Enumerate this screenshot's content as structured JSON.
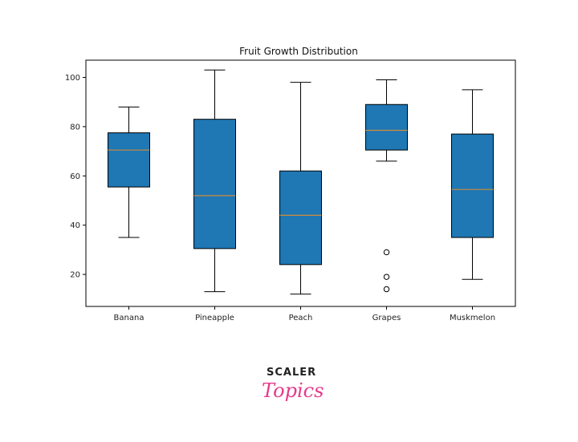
{
  "chart_data": {
    "type": "box",
    "title": "Fruit Growth Distribution",
    "xlabel": "",
    "ylabel": "",
    "ylim": [
      7,
      107
    ],
    "yticks": [
      20,
      40,
      60,
      80,
      100
    ],
    "categories": [
      "Banana",
      "Pineapple",
      "Peach",
      "Grapes",
      "Muskmelon"
    ],
    "boxes": [
      {
        "name": "Banana",
        "whisker_low": 35,
        "q1": 55.5,
        "median": 70.5,
        "q3": 77.5,
        "whisker_high": 88,
        "outliers": []
      },
      {
        "name": "Pineapple",
        "whisker_low": 13,
        "q1": 30.5,
        "median": 52,
        "q3": 83,
        "whisker_high": 103,
        "outliers": []
      },
      {
        "name": "Peach",
        "whisker_low": 12,
        "q1": 24,
        "median": 44,
        "q3": 62,
        "whisker_high": 98,
        "outliers": []
      },
      {
        "name": "Grapes",
        "whisker_low": 66,
        "q1": 70.5,
        "median": 78.5,
        "q3": 89,
        "whisker_high": 99,
        "outliers": [
          29,
          19,
          14
        ]
      },
      {
        "name": "Muskmelon",
        "whisker_low": 18,
        "q1": 35,
        "median": 54.5,
        "q3": 77,
        "whisker_high": 95,
        "outliers": []
      }
    ],
    "box_color": "#1f77b4",
    "median_color": "#d08a3a",
    "grid": false,
    "legend": "none"
  },
  "logo": {
    "line1": "SCALER",
    "line2": "Topics",
    "accent_color": "#e63a8c"
  }
}
